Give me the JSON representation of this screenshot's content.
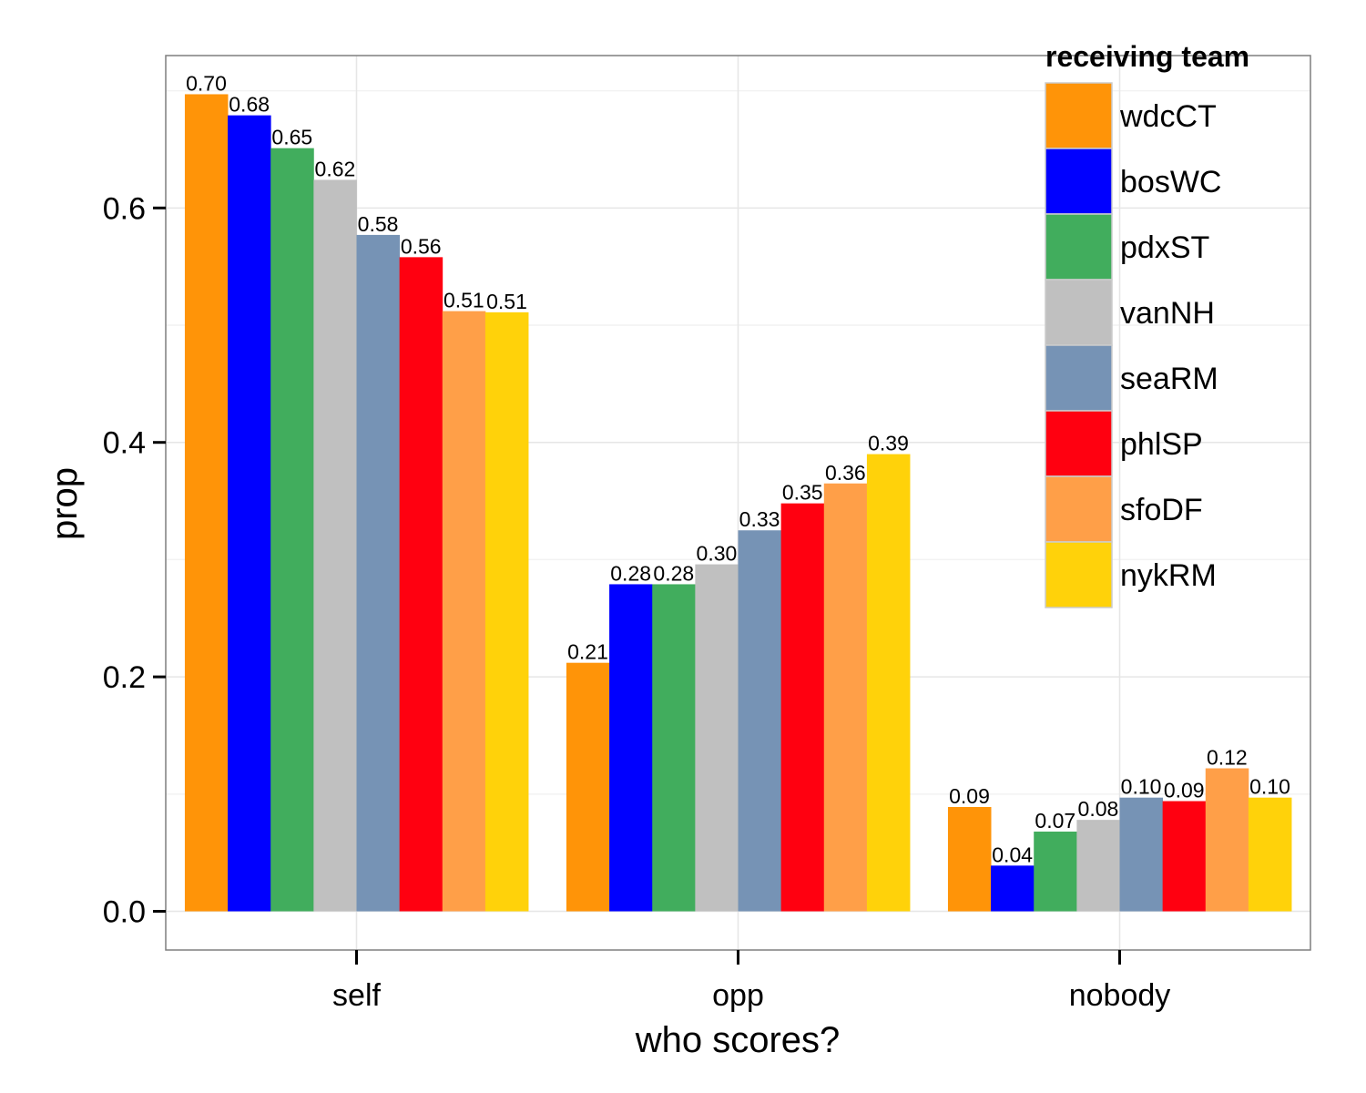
{
  "chart_data": {
    "type": "bar",
    "xlabel": "who scores?",
    "ylabel": "prop",
    "categories": [
      "self",
      "opp",
      "nobody"
    ],
    "ylim": [
      -0.033,
      0.73
    ],
    "yticks": [
      0.0,
      0.2,
      0.4,
      0.6
    ],
    "ytick_labels": [
      "0.0",
      "0.2",
      "0.4",
      "0.6"
    ],
    "grid": true,
    "legend": {
      "title": "receiving team",
      "position": "top-right"
    },
    "series": [
      {
        "name": "wdcCT",
        "color": "#ff9408",
        "values": [
          0.697,
          0.212,
          0.089
        ],
        "labels": [
          "0.70",
          "0.21",
          "0.09"
        ]
      },
      {
        "name": "bosWC",
        "color": "#0000ff",
        "values": [
          0.679,
          0.279,
          0.039
        ],
        "labels": [
          "0.68",
          "0.28",
          "0.04"
        ]
      },
      {
        "name": "pdxST",
        "color": "#41ad5d",
        "values": [
          0.651,
          0.279,
          0.068
        ],
        "labels": [
          "0.65",
          "0.28",
          "0.07"
        ]
      },
      {
        "name": "vanNH",
        "color": "#c0c0c0",
        "values": [
          0.624,
          0.296,
          0.078
        ],
        "labels": [
          "0.62",
          "0.30",
          "0.08"
        ]
      },
      {
        "name": "seaRM",
        "color": "#7693b5",
        "values": [
          0.577,
          0.325,
          0.097
        ],
        "labels": [
          "0.58",
          "0.33",
          "0.10"
        ]
      },
      {
        "name": "phlSP",
        "color": "#ff0010",
        "values": [
          0.558,
          0.348,
          0.094
        ],
        "labels": [
          "0.56",
          "0.35",
          "0.09"
        ]
      },
      {
        "name": "sfoDF",
        "color": "#ff9f48",
        "values": [
          0.512,
          0.365,
          0.122
        ],
        "labels": [
          "0.51",
          "0.36",
          "0.12"
        ]
      },
      {
        "name": "nykRM",
        "color": "#ffd20a",
        "values": [
          0.511,
          0.39,
          0.097
        ],
        "labels": [
          "0.51",
          "0.39",
          "0.10"
        ]
      }
    ]
  }
}
